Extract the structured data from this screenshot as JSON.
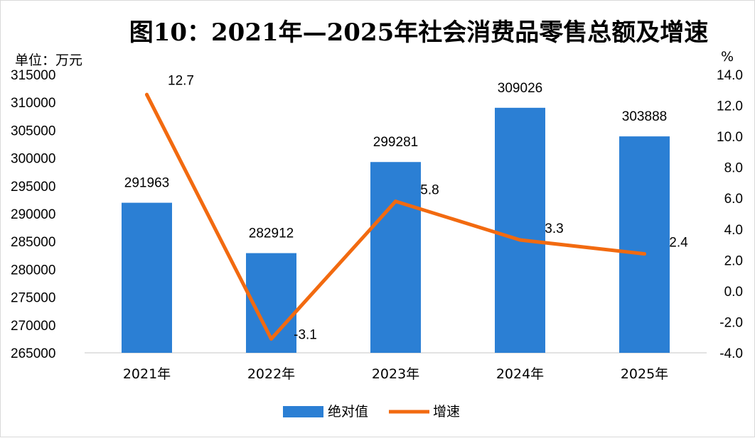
{
  "chart_data": {
    "type": "bar+line",
    "title": "图10：2021年—2025年社会消费品零售总额及增速",
    "left_axis_unit": "单位：万元",
    "right_axis_unit": "%",
    "categories": [
      "2021年",
      "2022年",
      "2023年",
      "2024年",
      "2025年"
    ],
    "series": [
      {
        "name": "绝对值",
        "type": "bar",
        "axis": "left",
        "values": [
          291963,
          282912,
          299281,
          309026,
          303888
        ],
        "color": "#2b7fd4"
      },
      {
        "name": "增速",
        "type": "line",
        "axis": "right",
        "values": [
          12.7,
          -3.1,
          5.8,
          3.3,
          2.4
        ],
        "color": "#f26a10"
      }
    ],
    "left_axis": {
      "min": 265000,
      "max": 315000,
      "step": 5000,
      "tick_labels": [
        "265000",
        "270000",
        "275000",
        "280000",
        "285000",
        "290000",
        "295000",
        "300000",
        "305000",
        "310000",
        "315000"
      ]
    },
    "right_axis": {
      "min": -4.0,
      "max": 14.0,
      "step": 2.0,
      "tick_labels": [
        "-4.0",
        "-2.0",
        "0.0",
        "2.0",
        "4.0",
        "6.0",
        "8.0",
        "10.0",
        "12.0",
        "14.0"
      ]
    },
    "bar_labels": [
      "291963",
      "282912",
      "299281",
      "309026",
      "303888"
    ],
    "line_labels": [
      "12.7",
      "-3.1",
      "5.8",
      "3.3",
      "2.4"
    ],
    "legend": {
      "position": "bottom",
      "items": [
        "绝对值",
        "增速"
      ]
    },
    "grid": false
  }
}
